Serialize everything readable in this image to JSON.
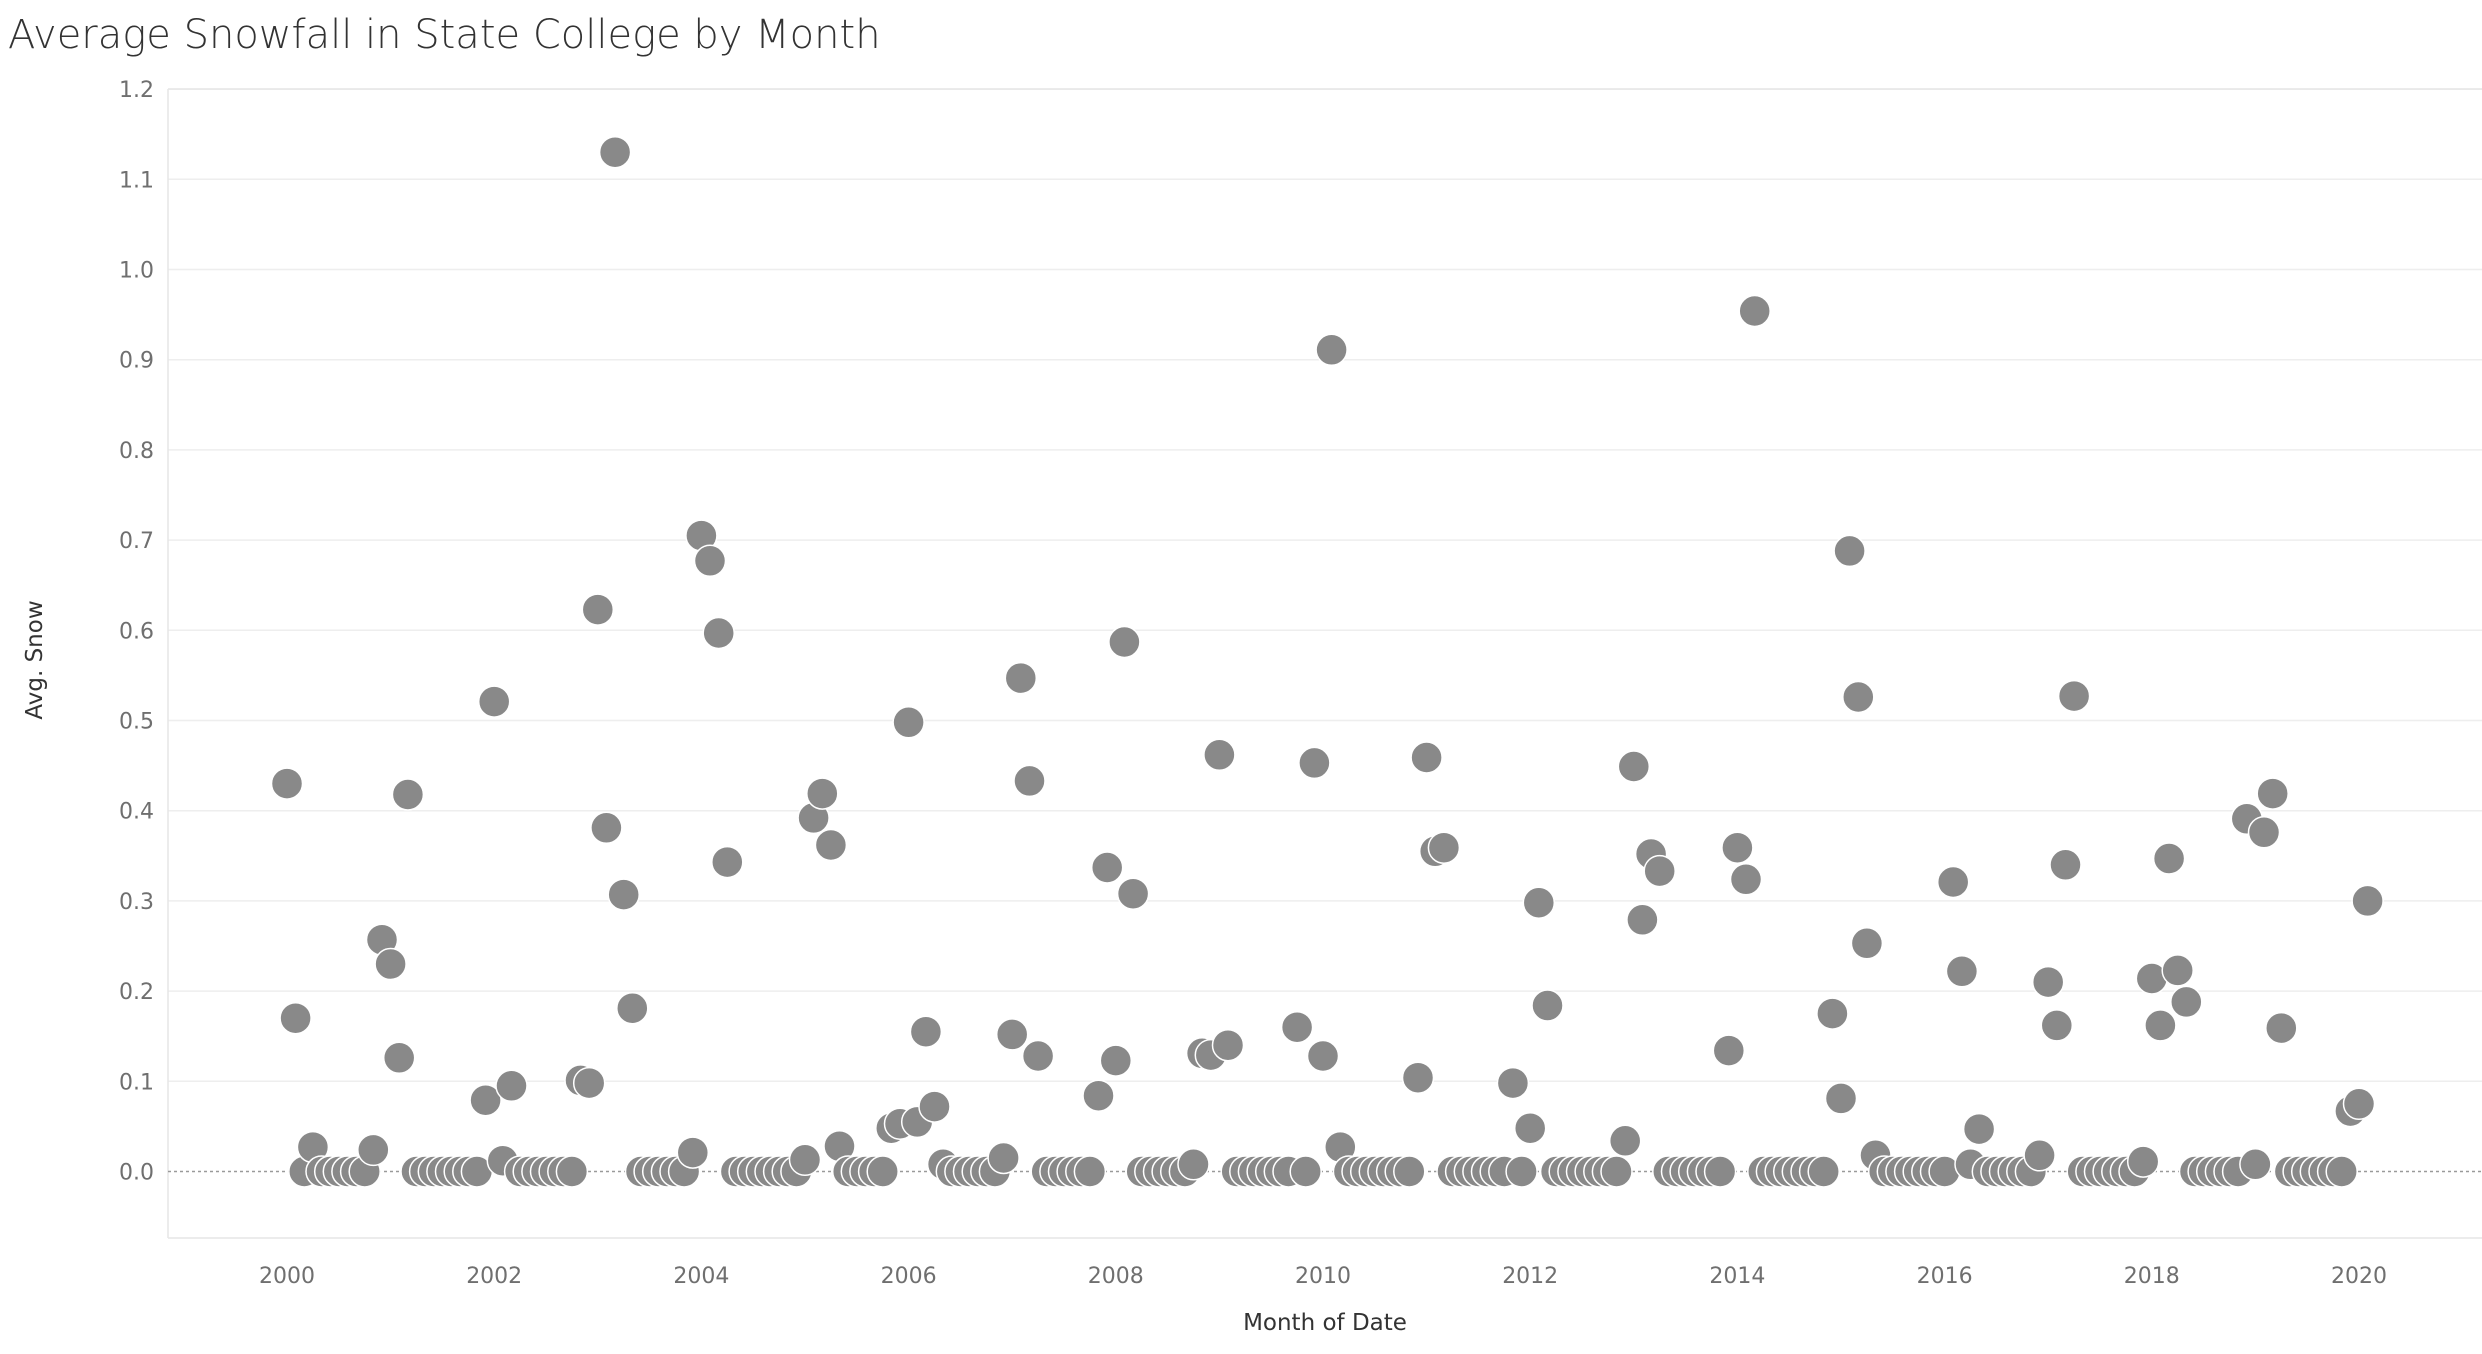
{
  "title": "Average Snowfall in State College by Month",
  "chart_data": {
    "type": "scatter",
    "title": "Average Snowfall in State College by Month",
    "xlabel": "Month of Date",
    "ylabel": "Avg. Snow",
    "x_ticks": [
      "2000",
      "2002",
      "2004",
      "2006",
      "2008",
      "2010",
      "2012",
      "2014",
      "2016",
      "2018",
      "2020"
    ],
    "y_ticks": [
      "0.0",
      "0.1",
      "0.2",
      "0.3",
      "0.4",
      "0.5",
      "0.6",
      "0.7",
      "0.8",
      "0.9",
      "1.0",
      "1.1",
      "1.2"
    ],
    "xlim": [
      "1998-12",
      "2021-02"
    ],
    "ylim": [
      -0.075,
      1.22
    ],
    "grid": true,
    "zero_line": true,
    "marker_color": "#898989",
    "points": [
      [
        "2000-01",
        0.43
      ],
      [
        "2000-02",
        0.17
      ],
      [
        "2000-03",
        0.0
      ],
      [
        "2000-04",
        0.027
      ],
      [
        "2000-05",
        0.0
      ],
      [
        "2000-06",
        0.0
      ],
      [
        "2000-07",
        0.0
      ],
      [
        "2000-08",
        0.0
      ],
      [
        "2000-09",
        0.0
      ],
      [
        "2000-10",
        0.0
      ],
      [
        "2000-11",
        0.024
      ],
      [
        "2000-12",
        0.257
      ],
      [
        "2001-01",
        0.23
      ],
      [
        "2001-02",
        0.126
      ],
      [
        "2001-03",
        0.418
      ],
      [
        "2001-04",
        0.0
      ],
      [
        "2001-05",
        0.0
      ],
      [
        "2001-06",
        0.0
      ],
      [
        "2001-07",
        0.0
      ],
      [
        "2001-08",
        0.0
      ],
      [
        "2001-09",
        0.0
      ],
      [
        "2001-10",
        0.0
      ],
      [
        "2001-11",
        0.0
      ],
      [
        "2001-12",
        0.079
      ],
      [
        "2002-01",
        0.521
      ],
      [
        "2002-02",
        0.012
      ],
      [
        "2002-03",
        0.095
      ],
      [
        "2002-04",
        0.0
      ],
      [
        "2002-05",
        0.0
      ],
      [
        "2002-06",
        0.0
      ],
      [
        "2002-07",
        0.0
      ],
      [
        "2002-08",
        0.0
      ],
      [
        "2002-09",
        0.0
      ],
      [
        "2002-10",
        0.0
      ],
      [
        "2002-11",
        0.101
      ],
      [
        "2002-12",
        0.098
      ],
      [
        "2003-01",
        0.623
      ],
      [
        "2003-02",
        0.381
      ],
      [
        "2003-03",
        1.13
      ],
      [
        "2003-04",
        0.307
      ],
      [
        "2003-05",
        0.181
      ],
      [
        "2003-06",
        0.0
      ],
      [
        "2003-07",
        0.0
      ],
      [
        "2003-08",
        0.0
      ],
      [
        "2003-09",
        0.0
      ],
      [
        "2003-10",
        0.0
      ],
      [
        "2003-11",
        0.0
      ],
      [
        "2003-12",
        0.021
      ],
      [
        "2004-01",
        0.705
      ],
      [
        "2004-02",
        0.677
      ],
      [
        "2004-03",
        0.597
      ],
      [
        "2004-04",
        0.343
      ],
      [
        "2004-05",
        0.0
      ],
      [
        "2004-06",
        0.0
      ],
      [
        "2004-07",
        0.0
      ],
      [
        "2004-08",
        0.0
      ],
      [
        "2004-09",
        0.0
      ],
      [
        "2004-10",
        0.0
      ],
      [
        "2004-11",
        0.0
      ],
      [
        "2004-12",
        0.0
      ],
      [
        "2005-01",
        0.013
      ],
      [
        "2005-02",
        0.392
      ],
      [
        "2005-03",
        0.419
      ],
      [
        "2005-04",
        0.362
      ],
      [
        "2005-05",
        0.028
      ],
      [
        "2005-06",
        0.0
      ],
      [
        "2005-07",
        0.0
      ],
      [
        "2005-08",
        0.0
      ],
      [
        "2005-09",
        0.0
      ],
      [
        "2005-10",
        0.0
      ],
      [
        "2005-11",
        0.048
      ],
      [
        "2005-12",
        0.053
      ],
      [
        "2006-01",
        0.498
      ],
      [
        "2006-02",
        0.055
      ],
      [
        "2006-03",
        0.155
      ],
      [
        "2006-04",
        0.072
      ],
      [
        "2006-05",
        0.008
      ],
      [
        "2006-06",
        0.0
      ],
      [
        "2006-07",
        0.0
      ],
      [
        "2006-08",
        0.0
      ],
      [
        "2006-09",
        0.0
      ],
      [
        "2006-10",
        0.0
      ],
      [
        "2006-11",
        0.0
      ],
      [
        "2006-12",
        0.015
      ],
      [
        "2007-01",
        0.152
      ],
      [
        "2007-02",
        0.547
      ],
      [
        "2007-03",
        0.433
      ],
      [
        "2007-04",
        0.128
      ],
      [
        "2007-05",
        0.0
      ],
      [
        "2007-06",
        0.0
      ],
      [
        "2007-07",
        0.0
      ],
      [
        "2007-08",
        0.0
      ],
      [
        "2007-09",
        0.0
      ],
      [
        "2007-10",
        0.0
      ],
      [
        "2007-11",
        0.084
      ],
      [
        "2007-12",
        0.337
      ],
      [
        "2008-01",
        0.123
      ],
      [
        "2008-02",
        0.587
      ],
      [
        "2008-03",
        0.308
      ],
      [
        "2008-04",
        0.0
      ],
      [
        "2008-05",
        0.0
      ],
      [
        "2008-06",
        0.0
      ],
      [
        "2008-07",
        0.0
      ],
      [
        "2008-08",
        0.0
      ],
      [
        "2008-09",
        0.0
      ],
      [
        "2008-10",
        0.008
      ],
      [
        "2008-11",
        0.131
      ],
      [
        "2008-12",
        0.129
      ],
      [
        "2009-01",
        0.462
      ],
      [
        "2009-02",
        0.14
      ],
      [
        "2009-03",
        0.0
      ],
      [
        "2009-04",
        0.0
      ],
      [
        "2009-05",
        0.0
      ],
      [
        "2009-06",
        0.0
      ],
      [
        "2009-07",
        0.0
      ],
      [
        "2009-08",
        0.0
      ],
      [
        "2009-09",
        0.0
      ],
      [
        "2009-10",
        0.16
      ],
      [
        "2009-11",
        0.0
      ],
      [
        "2009-12",
        0.453
      ],
      [
        "2010-01",
        0.128
      ],
      [
        "2010-02",
        0.911
      ],
      [
        "2010-03",
        0.027
      ],
      [
        "2010-04",
        0.0
      ],
      [
        "2010-05",
        0.0
      ],
      [
        "2010-06",
        0.0
      ],
      [
        "2010-07",
        0.0
      ],
      [
        "2010-08",
        0.0
      ],
      [
        "2010-09",
        0.0
      ],
      [
        "2010-10",
        0.0
      ],
      [
        "2010-11",
        0.0
      ],
      [
        "2010-12",
        0.104
      ],
      [
        "2011-01",
        0.459
      ],
      [
        "2011-02",
        0.355
      ],
      [
        "2011-03",
        0.359
      ],
      [
        "2011-04",
        0.0
      ],
      [
        "2011-05",
        0.0
      ],
      [
        "2011-06",
        0.0
      ],
      [
        "2011-07",
        0.0
      ],
      [
        "2011-08",
        0.0
      ],
      [
        "2011-09",
        0.0
      ],
      [
        "2011-10",
        0.0
      ],
      [
        "2011-11",
        0.098
      ],
      [
        "2011-12",
        0.0
      ],
      [
        "2012-01",
        0.048
      ],
      [
        "2012-02",
        0.298
      ],
      [
        "2012-03",
        0.184
      ],
      [
        "2012-04",
        0.0
      ],
      [
        "2012-05",
        0.0
      ],
      [
        "2012-06",
        0.0
      ],
      [
        "2012-07",
        0.0
      ],
      [
        "2012-08",
        0.0
      ],
      [
        "2012-09",
        0.0
      ],
      [
        "2012-10",
        0.0
      ],
      [
        "2012-11",
        0.0
      ],
      [
        "2012-12",
        0.034
      ],
      [
        "2013-01",
        0.449
      ],
      [
        "2013-02",
        0.279
      ],
      [
        "2013-03",
        0.352
      ],
      [
        "2013-04",
        0.333
      ],
      [
        "2013-05",
        0.0
      ],
      [
        "2013-06",
        0.0
      ],
      [
        "2013-07",
        0.0
      ],
      [
        "2013-08",
        0.0
      ],
      [
        "2013-09",
        0.0
      ],
      [
        "2013-10",
        0.0
      ],
      [
        "2013-11",
        0.0
      ],
      [
        "2013-12",
        0.134
      ],
      [
        "2014-01",
        0.359
      ],
      [
        "2014-02",
        0.324
      ],
      [
        "2014-03",
        0.954
      ],
      [
        "2014-04",
        0.0
      ],
      [
        "2014-05",
        0.0
      ],
      [
        "2014-06",
        0.0
      ],
      [
        "2014-07",
        0.0
      ],
      [
        "2014-08",
        0.0
      ],
      [
        "2014-09",
        0.0
      ],
      [
        "2014-10",
        0.0
      ],
      [
        "2014-11",
        0.0
      ],
      [
        "2014-12",
        0.175
      ],
      [
        "2015-01",
        0.081
      ],
      [
        "2015-02",
        0.688
      ],
      [
        "2015-03",
        0.526
      ],
      [
        "2015-04",
        0.253
      ],
      [
        "2015-05",
        0.018
      ],
      [
        "2015-06",
        0.0
      ],
      [
        "2015-07",
        0.0
      ],
      [
        "2015-08",
        0.0
      ],
      [
        "2015-09",
        0.0
      ],
      [
        "2015-10",
        0.0
      ],
      [
        "2015-11",
        0.0
      ],
      [
        "2015-12",
        0.0
      ],
      [
        "2016-01",
        0.0
      ],
      [
        "2016-02",
        0.321
      ],
      [
        "2016-03",
        0.222
      ],
      [
        "2016-04",
        0.008
      ],
      [
        "2016-05",
        0.047
      ],
      [
        "2016-06",
        0.0
      ],
      [
        "2016-07",
        0.0
      ],
      [
        "2016-08",
        0.0
      ],
      [
        "2016-09",
        0.0
      ],
      [
        "2016-10",
        0.0
      ],
      [
        "2016-11",
        0.0
      ],
      [
        "2016-12",
        0.018
      ],
      [
        "2017-01",
        0.21
      ],
      [
        "2017-02",
        0.162
      ],
      [
        "2017-03",
        0.34
      ],
      [
        "2017-04",
        0.527
      ],
      [
        "2017-05",
        0.0
      ],
      [
        "2017-06",
        0.0
      ],
      [
        "2017-07",
        0.0
      ],
      [
        "2017-08",
        0.0
      ],
      [
        "2017-09",
        0.0
      ],
      [
        "2017-10",
        0.0
      ],
      [
        "2017-11",
        0.0
      ],
      [
        "2017-12",
        0.011
      ],
      [
        "2018-01",
        0.214
      ],
      [
        "2018-02",
        0.162
      ],
      [
        "2018-03",
        0.347
      ],
      [
        "2018-04",
        0.223
      ],
      [
        "2018-05",
        0.188
      ],
      [
        "2018-06",
        0.0
      ],
      [
        "2018-07",
        0.0
      ],
      [
        "2018-08",
        0.0
      ],
      [
        "2018-09",
        0.0
      ],
      [
        "2018-10",
        0.0
      ],
      [
        "2018-11",
        0.0
      ],
      [
        "2018-12",
        0.391
      ],
      [
        "2019-01",
        0.008
      ],
      [
        "2019-02",
        0.376
      ],
      [
        "2019-03",
        0.419
      ],
      [
        "2019-04",
        0.159
      ],
      [
        "2019-05",
        0.0
      ],
      [
        "2019-06",
        0.0
      ],
      [
        "2019-07",
        0.0
      ],
      [
        "2019-08",
        0.0
      ],
      [
        "2019-09",
        0.0
      ],
      [
        "2019-10",
        0.0
      ],
      [
        "2019-11",
        0.0
      ],
      [
        "2019-12",
        0.067
      ],
      [
        "2020-01",
        0.075
      ],
      [
        "2020-02",
        0.3
      ]
    ]
  }
}
